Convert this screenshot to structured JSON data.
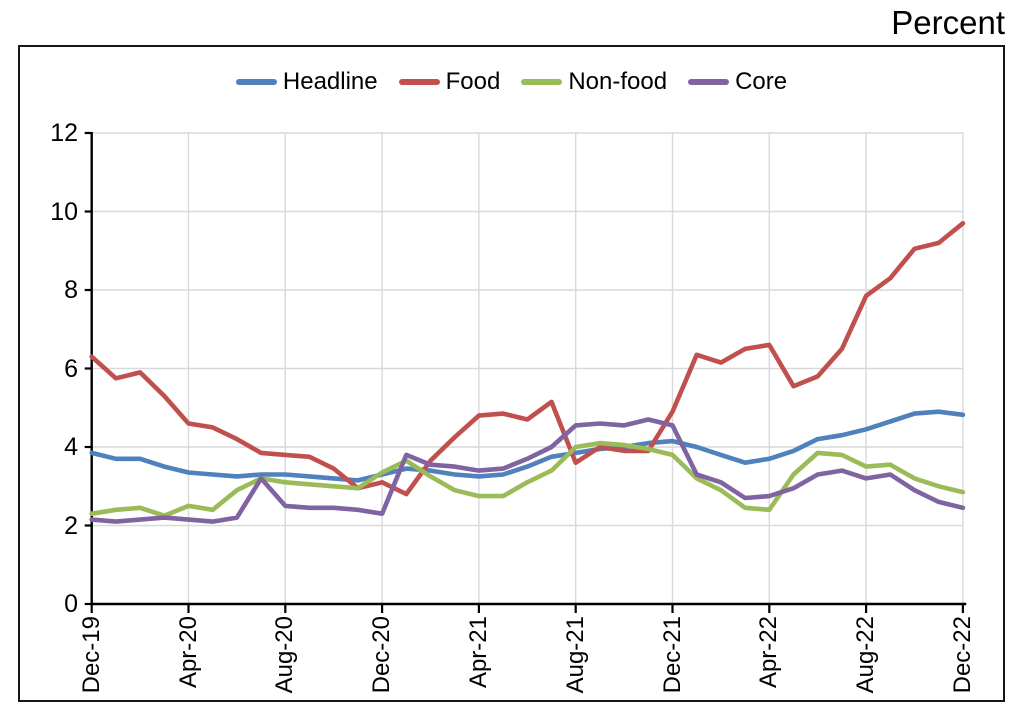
{
  "page": {
    "title": "Percent"
  },
  "legend": [
    {
      "label": "Headline",
      "color": "#4F81BD"
    },
    {
      "label": "Food",
      "color": "#C0504D"
    },
    {
      "label": "Non-food",
      "color": "#9BBB59"
    },
    {
      "label": "Core",
      "color": "#8064A2"
    }
  ],
  "colors": {
    "grid": "#D9D9D9",
    "axis": "#000000",
    "frame": "#161616",
    "text": "#000000"
  },
  "chart_data": {
    "type": "line",
    "title": "Percent",
    "xlabel": "",
    "ylabel": "Percent",
    "ylim": [
      0,
      12
    ],
    "y_ticks": [
      0,
      2,
      4,
      6,
      8,
      10,
      12
    ],
    "grid": true,
    "legend_position": "top-center",
    "x": [
      "Dec-19",
      "Jan-20",
      "Feb-20",
      "Mar-20",
      "Apr-20",
      "May-20",
      "Jun-20",
      "Jul-20",
      "Aug-20",
      "Sep-20",
      "Oct-20",
      "Nov-20",
      "Dec-20",
      "Jan-21",
      "Feb-21",
      "Mar-21",
      "Apr-21",
      "May-21",
      "Jun-21",
      "Jul-21",
      "Aug-21",
      "Sep-21",
      "Oct-21",
      "Nov-21",
      "Dec-21",
      "Jan-22",
      "Feb-22",
      "Mar-22",
      "Apr-22",
      "May-22",
      "Jun-22",
      "Jul-22",
      "Aug-22",
      "Sep-22",
      "Oct-22",
      "Nov-22",
      "Dec-22"
    ],
    "x_tick_positions": [
      0,
      4,
      8,
      12,
      16,
      20,
      24,
      28,
      32,
      36
    ],
    "x_tick_labels": [
      "Dec-19",
      "Apr-20",
      "Aug-20",
      "Dec-20",
      "Apr-21",
      "Aug-21",
      "Dec-21",
      "Apr-22",
      "Aug-22",
      "Dec-22"
    ],
    "series": [
      {
        "name": "Headline",
        "color": "#4F81BD",
        "values": [
          3.85,
          3.7,
          3.7,
          3.5,
          3.35,
          3.3,
          3.25,
          3.3,
          3.3,
          3.25,
          3.2,
          3.15,
          3.3,
          3.45,
          3.4,
          3.3,
          3.25,
          3.3,
          3.5,
          3.75,
          3.85,
          3.95,
          4.0,
          4.1,
          4.15,
          4.0,
          3.8,
          3.6,
          3.7,
          3.9,
          4.2,
          4.3,
          4.45,
          4.65,
          4.85,
          4.9,
          4.82
        ]
      },
      {
        "name": "Food",
        "color": "#C0504D",
        "values": [
          6.3,
          5.75,
          5.9,
          5.3,
          4.6,
          4.5,
          4.2,
          3.85,
          3.8,
          3.75,
          3.45,
          2.95,
          3.1,
          2.8,
          3.65,
          4.25,
          4.8,
          4.85,
          4.7,
          5.15,
          3.6,
          4.0,
          3.9,
          3.9,
          4.9,
          6.35,
          6.15,
          6.5,
          6.6,
          5.55,
          5.8,
          6.5,
          7.85,
          8.3,
          9.05,
          9.2,
          9.7
        ]
      },
      {
        "name": "Non-food",
        "color": "#9BBB59",
        "values": [
          2.3,
          2.4,
          2.45,
          2.25,
          2.5,
          2.4,
          2.9,
          3.2,
          3.1,
          3.05,
          3.0,
          2.95,
          3.35,
          3.65,
          3.25,
          2.9,
          2.75,
          2.75,
          3.1,
          3.4,
          4.0,
          4.1,
          4.05,
          3.95,
          3.8,
          3.2,
          2.9,
          2.45,
          2.4,
          3.3,
          3.85,
          3.8,
          3.5,
          3.55,
          3.2,
          3.0,
          2.85
        ]
      },
      {
        "name": "Core",
        "color": "#8064A2",
        "values": [
          2.15,
          2.1,
          2.15,
          2.2,
          2.15,
          2.1,
          2.2,
          3.2,
          2.5,
          2.45,
          2.45,
          2.4,
          2.3,
          3.8,
          3.55,
          3.5,
          3.4,
          3.45,
          3.7,
          4.0,
          4.55,
          4.6,
          4.55,
          4.7,
          4.55,
          3.3,
          3.1,
          2.7,
          2.75,
          2.95,
          3.3,
          3.4,
          3.2,
          3.3,
          2.9,
          2.6,
          2.45
        ]
      }
    ]
  }
}
